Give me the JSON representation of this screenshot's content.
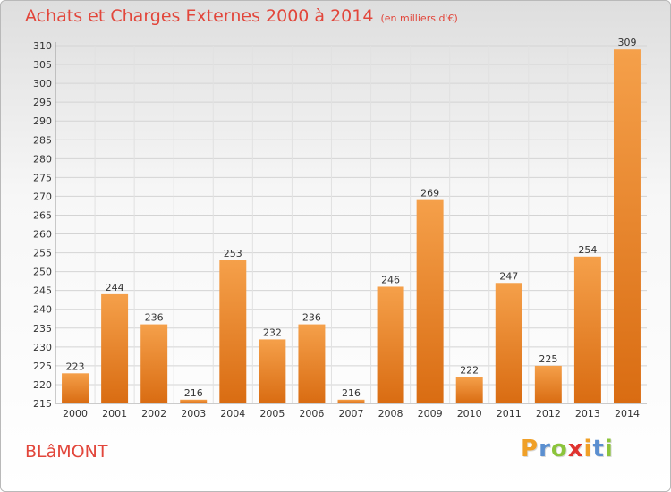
{
  "chart_data": {
    "type": "bar",
    "title": "Achats et Charges Externes 2000 à 2014",
    "subtitle": "(en milliers d'€)",
    "categories": [
      "2000",
      "2001",
      "2002",
      "2003",
      "2004",
      "2005",
      "2006",
      "2007",
      "2008",
      "2009",
      "2010",
      "2011",
      "2012",
      "2013",
      "2014"
    ],
    "values": [
      223,
      244,
      236,
      216,
      253,
      232,
      236,
      216,
      246,
      269,
      222,
      247,
      225,
      254,
      309
    ],
    "ylim": [
      215,
      310
    ],
    "ytick_step": 5,
    "grid": true,
    "bar_color_light": "#f5a04a",
    "bar_color_dark": "#d96c12"
  },
  "footer": {
    "city": "BLâMONT",
    "logo_letters": [
      "P",
      "r",
      "o",
      "x",
      "i",
      "t",
      "i"
    ],
    "logo_colors": [
      "#f0a028",
      "#5b8fd0",
      "#8cc43c",
      "#e0332f",
      "#f0a028",
      "#5b8fd0",
      "#8cc43c"
    ]
  }
}
